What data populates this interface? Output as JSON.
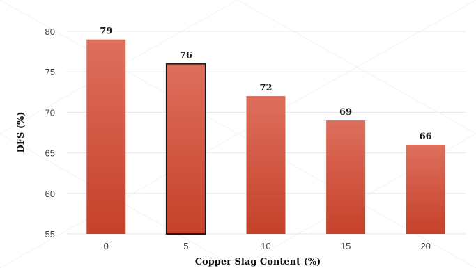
{
  "chart_data": {
    "type": "bar",
    "title": "",
    "xlabel": "Copper Slag Content (%)",
    "ylabel": "DFS (%)",
    "categories": [
      "0",
      "5",
      "10",
      "15",
      "20"
    ],
    "values": [
      79,
      76,
      72,
      69,
      66
    ],
    "data_labels": [
      "79",
      "76",
      "72",
      "69",
      "66"
    ],
    "ylim": [
      55,
      80
    ],
    "yticks": [
      55,
      60,
      65,
      70,
      75,
      80
    ],
    "grid": true,
    "legend": "none",
    "colors": {
      "bar_top": "#de6f5d",
      "bar_bottom": "#c5412a",
      "highlight_outline": "#1a1a1a",
      "grid": "#e6e6e6"
    },
    "highlighted_category": "5"
  }
}
